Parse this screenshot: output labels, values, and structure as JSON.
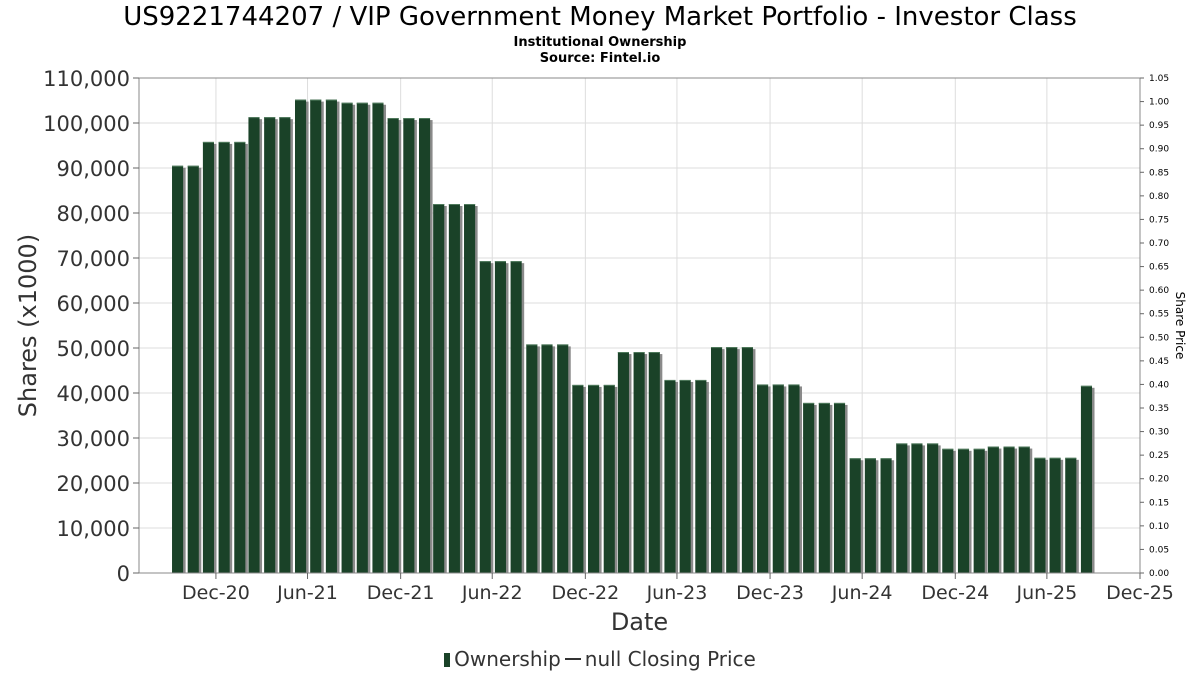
{
  "title": "US9221744207 / VIP Government Money Market Portfolio - Investor Class",
  "subtitle": "Institutional Ownership",
  "source": "Source: Fintel.io",
  "legend": {
    "ownership": "Ownership",
    "price": "null Closing Price"
  },
  "colors": {
    "bar": "#1a4228",
    "bar_shadow": "#8a8a8a",
    "grid": "#dddddd",
    "axis_text": "#333333"
  },
  "chart_data": {
    "type": "bar",
    "xlabel": "Date",
    "ylabel": "Shares (x1000)",
    "y2label": "Share Price",
    "ylim": [
      0,
      110000
    ],
    "y2lim": [
      0,
      1.05
    ],
    "xlim": [
      "2020-08-01",
      "2025-12-31"
    ],
    "grid": true,
    "legend_position": "bottom",
    "y_ticks": [
      "0",
      "10,000",
      "20,000",
      "30,000",
      "40,000",
      "50,000",
      "60,000",
      "70,000",
      "80,000",
      "90,000",
      "100,000",
      "110,000"
    ],
    "y2_ticks": [
      "0.00",
      "0.05",
      "0.10",
      "0.15",
      "0.20",
      "0.25",
      "0.30",
      "0.35",
      "0.40",
      "0.45",
      "0.50",
      "0.55",
      "0.60",
      "0.65",
      "0.70",
      "0.75",
      "0.80",
      "0.85",
      "0.90",
      "0.95",
      "1.00",
      "1.05"
    ],
    "x_ticks": [
      {
        "label": "Dec-20",
        "date": "2020-12-31"
      },
      {
        "label": "Jun-21",
        "date": "2021-06-30"
      },
      {
        "label": "Dec-21",
        "date": "2021-12-31"
      },
      {
        "label": "Jun-22",
        "date": "2022-06-30"
      },
      {
        "label": "Dec-22",
        "date": "2022-12-31"
      },
      {
        "label": "Jun-23",
        "date": "2023-06-30"
      },
      {
        "label": "Dec-23",
        "date": "2023-12-31"
      },
      {
        "label": "Jun-24",
        "date": "2024-06-30"
      },
      {
        "label": "Dec-24",
        "date": "2024-12-31"
      },
      {
        "label": "Jun-25",
        "date": "2025-06-30"
      },
      {
        "label": "Dec-25",
        "date": "2025-12-31"
      }
    ],
    "series": [
      {
        "name": "Ownership",
        "points": [
          {
            "date": "2020-10-01",
            "value": 90500
          },
          {
            "date": "2020-11-01",
            "value": 90500
          },
          {
            "date": "2020-12-01",
            "value": 95800
          },
          {
            "date": "2021-01-01",
            "value": 95800
          },
          {
            "date": "2021-02-01",
            "value": 95800
          },
          {
            "date": "2021-03-01",
            "value": 101300
          },
          {
            "date": "2021-04-01",
            "value": 101300
          },
          {
            "date": "2021-05-01",
            "value": 101300
          },
          {
            "date": "2021-06-01",
            "value": 105200
          },
          {
            "date": "2021-07-01",
            "value": 105200
          },
          {
            "date": "2021-08-01",
            "value": 105200
          },
          {
            "date": "2021-09-01",
            "value": 104500
          },
          {
            "date": "2021-10-01",
            "value": 104500
          },
          {
            "date": "2021-11-01",
            "value": 104500
          },
          {
            "date": "2021-12-01",
            "value": 101100
          },
          {
            "date": "2022-01-01",
            "value": 101100
          },
          {
            "date": "2022-02-01",
            "value": 101100
          },
          {
            "date": "2022-03-01",
            "value": 82000
          },
          {
            "date": "2022-04-01",
            "value": 82000
          },
          {
            "date": "2022-05-01",
            "value": 82000
          },
          {
            "date": "2022-06-01",
            "value": 69300
          },
          {
            "date": "2022-07-01",
            "value": 69300
          },
          {
            "date": "2022-08-01",
            "value": 69300
          },
          {
            "date": "2022-09-01",
            "value": 50800
          },
          {
            "date": "2022-10-01",
            "value": 50800
          },
          {
            "date": "2022-11-01",
            "value": 50800
          },
          {
            "date": "2022-12-01",
            "value": 41800
          },
          {
            "date": "2023-01-01",
            "value": 41800
          },
          {
            "date": "2023-02-01",
            "value": 41800
          },
          {
            "date": "2023-03-01",
            "value": 49100
          },
          {
            "date": "2023-04-01",
            "value": 49100
          },
          {
            "date": "2023-05-01",
            "value": 49100
          },
          {
            "date": "2023-06-01",
            "value": 42900
          },
          {
            "date": "2023-07-01",
            "value": 42900
          },
          {
            "date": "2023-08-01",
            "value": 42900
          },
          {
            "date": "2023-09-01",
            "value": 50200
          },
          {
            "date": "2023-10-01",
            "value": 50200
          },
          {
            "date": "2023-11-01",
            "value": 50200
          },
          {
            "date": "2023-12-01",
            "value": 41900
          },
          {
            "date": "2024-01-01",
            "value": 41900
          },
          {
            "date": "2024-02-01",
            "value": 41900
          },
          {
            "date": "2024-03-01",
            "value": 37800
          },
          {
            "date": "2024-04-01",
            "value": 37800
          },
          {
            "date": "2024-05-01",
            "value": 37800
          },
          {
            "date": "2024-06-01",
            "value": 25500
          },
          {
            "date": "2024-07-01",
            "value": 25500
          },
          {
            "date": "2024-08-01",
            "value": 25500
          },
          {
            "date": "2024-09-01",
            "value": 28800
          },
          {
            "date": "2024-10-01",
            "value": 28800
          },
          {
            "date": "2024-11-01",
            "value": 28800
          },
          {
            "date": "2024-12-01",
            "value": 27600
          },
          {
            "date": "2025-01-01",
            "value": 27600
          },
          {
            "date": "2025-02-01",
            "value": 27600
          },
          {
            "date": "2025-03-01",
            "value": 28100
          },
          {
            "date": "2025-04-01",
            "value": 28100
          },
          {
            "date": "2025-05-01",
            "value": 28100
          },
          {
            "date": "2025-06-01",
            "value": 25600
          },
          {
            "date": "2025-07-01",
            "value": 25600
          },
          {
            "date": "2025-08-01",
            "value": 25600
          },
          {
            "date": "2025-09-01",
            "value": 41600
          }
        ]
      },
      {
        "name": "null Closing Price",
        "points": []
      }
    ]
  }
}
